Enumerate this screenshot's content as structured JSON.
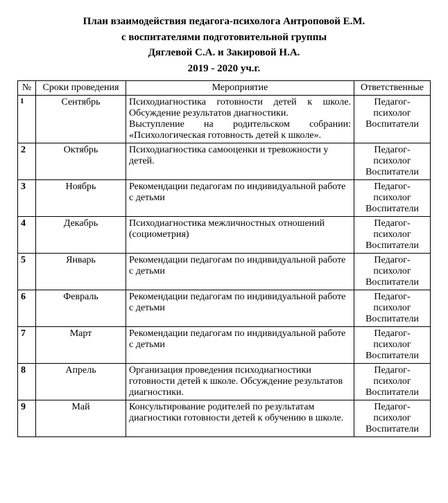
{
  "title": {
    "line1": "План взаимодействия педагога-психолога Антроповой Е.М.",
    "line2": "с воспитателями подготовительной группы",
    "line3": "Дяглевой С.А. и Закировой Н.А.",
    "line4": "2019 - 2020 уч.г."
  },
  "headers": {
    "num": "№",
    "date": "Сроки проведения",
    "event": "Мероприятие",
    "resp": "Ответственные"
  },
  "rows": [
    {
      "num": "1",
      "date": "Сентябрь",
      "event": "Психодиагностика готовности детей к школе. Обсуждение результатов диагностики.\nВыступление на родительском собрании: «Психологическая готовность детей к школе».",
      "resp": "Педагог-психолог Воспитатели",
      "justify": true,
      "small_num": true
    },
    {
      "num": "2",
      "date": "Октябрь",
      "event": "Психодиагностика самооценки и тревожности у детей.",
      "resp": "Педагог-психолог Воспитатели"
    },
    {
      "num": "3",
      "date": "Ноябрь",
      "event": "Рекомендации педагогам по индивидуальной работе с детьми",
      "resp": "Педагог-психолог Воспитатели"
    },
    {
      "num": "4",
      "date": "Декабрь",
      "event": "Психодиагностика межличностных отношений (социометрия)",
      "resp": "Педагог-психолог Воспитатели"
    },
    {
      "num": "5",
      "date": "Январь",
      "event": "Рекомендации педагогам по индивидуальной работе с детьми",
      "resp": "Педагог-психолог Воспитатели"
    },
    {
      "num": "6",
      "date": "Февраль",
      "event": "Рекомендации педагогам по индивидуальной работе с детьми",
      "resp": "Педагог-психолог Воспитатели"
    },
    {
      "num": "7",
      "date": "Март",
      "event": "Рекомендации педагогам по индивидуальной работе с детьми",
      "resp": "Педагог-психолог Воспитатели"
    },
    {
      "num": "8",
      "date": "Апрель",
      "event": "Организация проведения психодиагностики готовности детей к школе. Обсуждение результатов диагностики.",
      "resp": "Педагог-психолог Воспитатели"
    },
    {
      "num": "9",
      "date": "Май",
      "event": "Консультирование родителей по результатам диагностики готовности детей к обучению в школе.",
      "resp": "Педагог-психолог Воспитатели"
    }
  ]
}
